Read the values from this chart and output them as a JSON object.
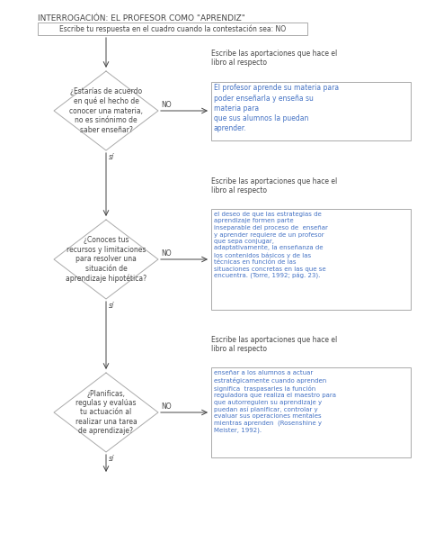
{
  "title": "INTERROGACIÓN: EL PROFESOR COMO \"APRENDIZ\"",
  "instruction_box": "Escribe tu respuesta en el cuadro cuando la contestación sea: NO",
  "bg_color": "#ffffff",
  "diamond_edge": "#aaaaaa",
  "box_edge": "#aaaaaa",
  "text_color_dark": "#444444",
  "text_color_blue": "#4472c4",
  "label_text": "Escribe las aportaciones que hace el\nlibro al respecto",
  "diamonds": [
    {
      "question": "¿Estarías de acuerdo\nen qué el hecho de\nconocer una materia,\nno es sinónimo de\nsaber enseñar?",
      "no_text": "El profesor aprende su materia para\npoder enseñarla y enseña su\nmateria para\nque sus alumnos la puedan\naprender."
    },
    {
      "question": "¿Conoces tus\nrecursos y limitaciones\npara resolver una\nsituación de\naprendizaje hipotética?",
      "no_text": "el deseo de que las estrategias de\naprendizaje formen parte\ninseparable del proceso de  enseñar\ny aprender requiere de un profesor\nque sepa conjugar,\nadaptativamente, la enseñanza de\nlos contenidos básicos y de las\ntécnicas en función de las\nsituaciones concretas en las que se\nencuentra. (Torre, 1992; pág. 23)."
    },
    {
      "question": "¿Planificas,\nregulas y evalúas\ntu actuación al\nrealizar una tarea\nde aprendizaje?",
      "no_text": "enseñar a los alumnos a actuar\nestratégicamente cuando aprenden\nsignifica  traspasarles la función\nreguladora que realiza el maestro para\nque autorregulen su aprendizaje y\npuedan así planificar, controlar y\nevaluar sus operaciones mentales\nmientras aprenden  (Rosenshine y\nMeister, 1992)."
    }
  ]
}
